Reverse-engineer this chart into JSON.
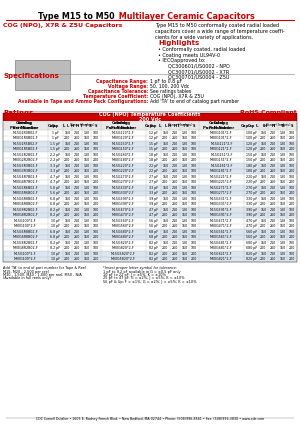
{
  "title_black": "Type M15 to M50",
  "title_red": " Multilayer Ceramic Capacitors",
  "subtitle_red": "COG (NPO), X7R & Z5U Capacitors",
  "subtitle_desc": "Type M15 to M50 conformally coated radial loaded\ncapacitors cover a wide range of temperature coeffi-\ncients for a wide variety of applications.",
  "highlights_title": "Highlights",
  "highlights": [
    "Conformally coated, radial loaded",
    "Coating meets UL94V-0",
    "IECQapproved to:",
    "  QC300601/US0002 - NPO",
    "  QC300701/US0002 - X7R",
    "  QC300701/US0004 - Z5U"
  ],
  "specs_title": "Specifications",
  "specs": [
    [
      "Capacitance Range:",
      "1 pF to 0.8 μF"
    ],
    [
      "Voltage Range:",
      "50, 100, 200 Vdc"
    ],
    [
      "Capacitance Tolerance:",
      "See ratings tables"
    ],
    [
      "Temperature Coefficient:",
      "COG (NPO), X7R & Z5U"
    ],
    [
      "Available in Tape and Ammo Pack Configurations:",
      "Add 'TA' to end of catalog part number"
    ]
  ],
  "ratings_title": "Ratings",
  "rohs": "RoHS Compliant",
  "table_title": "COG (NPO) Temperature Coefficients\n200 Vdc",
  "col_headers": [
    "Catalog\nPart Number",
    "Cap",
    "L",
    "H",
    "T",
    "S",
    "Catalog\nPart Number",
    "Cap",
    "L",
    "H",
    "T",
    "S",
    "Catalog\nPart Number",
    "Cap",
    "L",
    "H",
    "T",
    "S"
  ],
  "table_rows": [
    [
      "M15G1R0B02-F",
      "1 pF",
      "150",
      "210",
      "130",
      "100",
      "M15G120*2-F",
      "12 pF",
      "150",
      "210",
      "130",
      "100",
      "M30G101*2-F",
      "100 pF",
      "150",
      "210",
      "130",
      "100"
    ],
    [
      "M30G1R0B02-F",
      "1 pF",
      "200",
      "260",
      "150",
      "100",
      "M30G120*2-F",
      "12 pF",
      "200",
      "260",
      "150",
      "100",
      "M30G101*2-F",
      "100 pF",
      "200",
      "260",
      "150",
      "200"
    ],
    [
      "M15G1R5B02-F",
      "1.5 pF",
      "150",
      "210",
      "130",
      "100",
      "M15G150*2-F",
      "15 pF",
      "150",
      "210",
      "130",
      "100",
      "M15G121*2-F",
      "120 pF",
      "150",
      "210",
      "130",
      "100"
    ],
    [
      "M30G1R5B02-F",
      "1.5 pF",
      "200",
      "260",
      "150",
      "100",
      "M30G150*2-F",
      "15 pF",
      "200",
      "260",
      "150",
      "100",
      "M30G121*2-F",
      "120 pF",
      "200",
      "260",
      "150",
      "200"
    ],
    [
      "M15G2R2B02-F",
      "2.2 pF",
      "150",
      "210",
      "130",
      "100",
      "M15G180*2-F",
      "18 pF",
      "150",
      "210",
      "130",
      "100",
      "M15G151*2-F",
      "150 pF",
      "150",
      "210",
      "130",
      "100"
    ],
    [
      "M30G2R2B02-F",
      "2.2 pF",
      "200",
      "260",
      "150",
      "200",
      "M30G180*2-F",
      "18 pF",
      "200",
      "260",
      "150",
      "200",
      "M30G151*2-F",
      "150 pF",
      "200",
      "260",
      "150",
      "200"
    ],
    [
      "M15G3R3B02-F",
      "3.3 pF",
      "150",
      "210",
      "130",
      "100",
      "M15G220*2-F",
      "22 pF",
      "150",
      "210",
      "130",
      "100",
      "M15G181*2-F",
      "180 pF",
      "150",
      "210",
      "130",
      "100"
    ],
    [
      "M30G3R3B02-F",
      "3.3 pF",
      "200",
      "260",
      "150",
      "200",
      "M30G220*2-F",
      "22 pF",
      "200",
      "260",
      "150",
      "100",
      "M30G181*2-F",
      "180 pF",
      "200",
      "260",
      "150",
      "200"
    ],
    [
      "M15G4R7B02-F",
      "4.7 pF",
      "150",
      "210",
      "130",
      "100",
      "M15G270*2-F",
      "27 pF",
      "150",
      "210",
      "130",
      "100",
      "M15G221*2-F",
      "220 pF",
      "150",
      "210",
      "130",
      "100"
    ],
    [
      "M30G4R7B02-F",
      "4.7 pF",
      "200",
      "260",
      "150",
      "200",
      "M30G270*2-F",
      "27 pF",
      "200",
      "260",
      "150",
      "100",
      "M30G221*2-F",
      "220 pF",
      "200",
      "260",
      "150",
      "200"
    ],
    [
      "M15G5R6B02-F",
      "5.6 pF",
      "150",
      "210",
      "130",
      "100",
      "M15G330*2-F",
      "33 pF",
      "150",
      "210",
      "130",
      "100",
      "M15G271*2-F",
      "270 pF",
      "150",
      "210",
      "130",
      "100"
    ],
    [
      "M30G5R6B02-F",
      "5.6 pF",
      "200",
      "260",
      "150",
      "200",
      "M30G330*2-F",
      "33 pF",
      "200",
      "260",
      "150",
      "100",
      "M30G271*2-F",
      "270 pF",
      "200",
      "260",
      "150",
      "200"
    ],
    [
      "M15G6R8B02-F",
      "6.8 pF",
      "150",
      "210",
      "130",
      "100",
      "M15G390*2-F",
      "39 pF",
      "150",
      "210",
      "130",
      "100",
      "M15G331*2-F",
      "330 pF",
      "150",
      "210",
      "130",
      "100"
    ],
    [
      "M30G6R8B02-F",
      "6.8 pF",
      "200",
      "260",
      "150",
      "200",
      "M30G390*2-F",
      "39 pF",
      "200",
      "260",
      "150",
      "100",
      "M30G331*2-F",
      "330 pF",
      "200",
      "260",
      "150",
      "200"
    ],
    [
      "M15G8R2B02-F",
      "8.2 pF",
      "150",
      "210",
      "130",
      "100",
      "M15G470*2-F",
      "47 pF",
      "150",
      "210",
      "130",
      "100",
      "M15G391*2-F",
      "390 pF",
      "150",
      "210",
      "130",
      "100"
    ],
    [
      "M30G8R2B02-F",
      "8.2 pF",
      "200",
      "260",
      "150",
      "200",
      "M30G470*2-F",
      "47 pF",
      "200",
      "260",
      "150",
      "100",
      "M30G391*2-F",
      "390 pF",
      "200",
      "260",
      "150",
      "200"
    ],
    [
      "M15G100*2-F",
      "10 pF",
      "150",
      "210",
      "130",
      "100",
      "M15G560*2-F",
      "56 pF",
      "150",
      "210",
      "130",
      "100",
      "M15G471*2-F",
      "470 pF",
      "150",
      "210",
      "130",
      "100"
    ],
    [
      "M30G100*2-F",
      "10 pF",
      "200",
      "260",
      "150",
      "100",
      "M30G560*2-F",
      "56 pF",
      "200",
      "260",
      "150",
      "100",
      "M30G471*2-F",
      "470 pF",
      "200",
      "260",
      "150",
      "200"
    ],
    [
      "M15G6R8B02-F",
      "6.8 pF",
      "150",
      "210",
      "130",
      "100",
      "M15G680*2-F",
      "68 pF",
      "150",
      "210",
      "130",
      "100",
      "M15G561*2-F",
      "560 pF",
      "150",
      "210",
      "130",
      "100"
    ],
    [
      "M30G6R8B02-F",
      "6.8 pF",
      "200",
      "260",
      "150",
      "200",
      "M30G680*2-F",
      "68 pF",
      "200",
      "260",
      "150",
      "100",
      "M30G561*2-F",
      "560 pF",
      "200",
      "260",
      "150",
      "200"
    ],
    [
      "M15G8R2B02-F",
      "8.2 pF",
      "150",
      "210",
      "130",
      "100",
      "M15G820*2-F",
      "82 pF",
      "150",
      "210",
      "130",
      "100",
      "M15G681*2-F",
      "680 pF",
      "150",
      "210",
      "130",
      "100"
    ],
    [
      "M30G8R2B02-F",
      "8.2 pF",
      "200",
      "260",
      "150",
      "100",
      "M30G820*2-F",
      "82 pF",
      "200",
      "260",
      "150",
      "100",
      "M30G681*2-F",
      "680 pF",
      "200",
      "260",
      "150",
      "200"
    ],
    [
      "M15G100*2-F",
      "10 pF",
      "150",
      "210",
      "130",
      "100",
      "M15G5820*2-F",
      "82 pF",
      "200",
      "260",
      "150",
      "200",
      "M15G821*2-F",
      "820 pF",
      "150",
      "210",
      "130",
      "100"
    ],
    [
      "M30G100*2-F",
      "10 pF",
      "200",
      "260",
      "150",
      "200",
      "M30G5820*2-F",
      "82 pF",
      "200",
      "260",
      "150",
      "200",
      "M30G821*2-F",
      "820 pF",
      "200",
      "260",
      "150",
      "200"
    ]
  ],
  "footnotes": [
    "Add 'TA' to end of part number for Tape & Reel",
    "M15, M20 - 2,500 per reel",
    "M30 - 1,500; M40 - 1,000 per reel; M50 - N/A",
    "(Available in full reels only)"
  ],
  "footnotes2": [
    "*Insert proper letter symbol for tolerance:",
    "1 pF to 9.2 pF available in G = ±0.5 pF only",
    "10 pF to 22 pF: J = ±5%; K = ±10%",
    "25 pF to 47 pF: G = ±2%; J = ±5%; K = ±10%",
    "56 pF & Up: F = ±1%; G = ±2%; J = ±5%; K = ±10%"
  ],
  "footer": "CDC Cornell Dubilier • 1605 E. Rodney French Blvd. • New Bedford, MA 02744 • Phone: (508)996-8561 • Fax: (508)996-3830 • www.cde.com",
  "bg_color": "#ffffff",
  "red_color": "#cc0000",
  "header_bg": "#cc0000",
  "header_fg": "#ffffff",
  "alt_row_color": "#dce6f1",
  "table_header_color": "#cc0000"
}
